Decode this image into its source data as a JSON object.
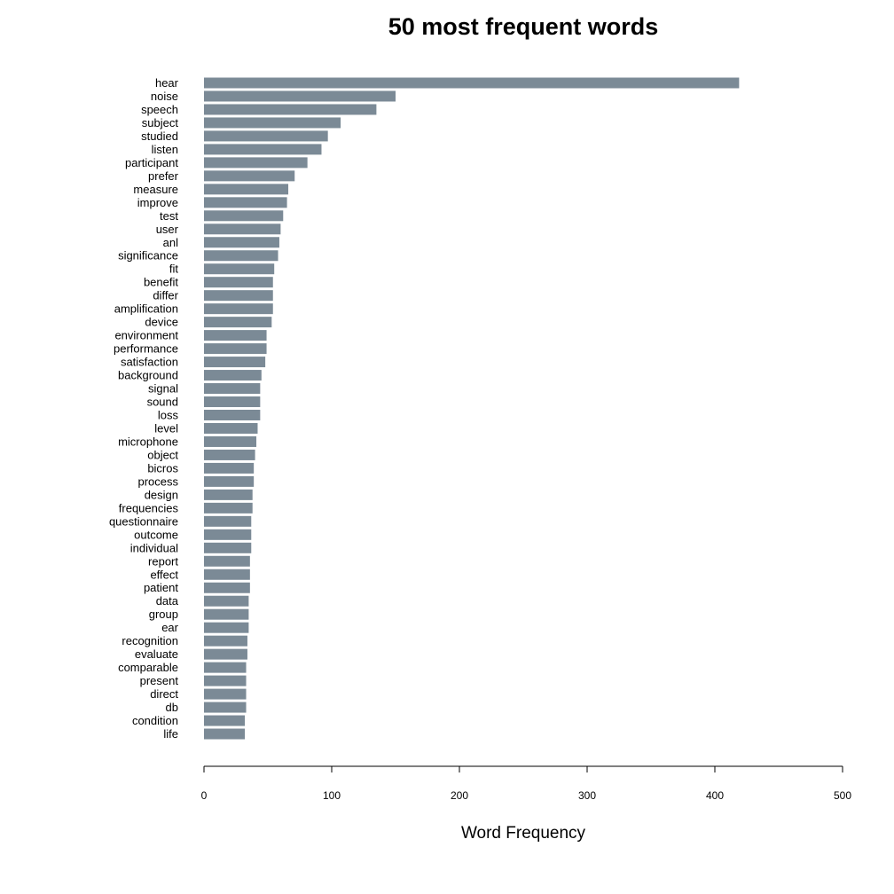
{
  "chart_data": {
    "type": "bar",
    "orientation": "horizontal",
    "title": "50 most frequent words",
    "xlabel": "Word Frequency",
    "ylabel": "",
    "xlim": [
      0,
      500
    ],
    "x_ticks": [
      "0",
      "100",
      "200",
      "300",
      "400",
      "500"
    ],
    "bar_color": "#7b8a96",
    "grid": false,
    "legend": "none",
    "categories": [
      "hear",
      "noise",
      "speech",
      "subject",
      "studied",
      "listen",
      "participant",
      "prefer",
      "measure",
      "improve",
      "test",
      "user",
      "anl",
      "significance",
      "fit",
      "benefit",
      "differ",
      "amplification",
      "device",
      "environment",
      "performance",
      "satisfaction",
      "background",
      "signal",
      "sound",
      "loss",
      "level",
      "microphone",
      "object",
      "bicros",
      "process",
      "design",
      "frequencies",
      "questionnaire",
      "outcome",
      "individual",
      "report",
      "effect",
      "patient",
      "data",
      "group",
      "ear",
      "recognition",
      "evaluate",
      "comparable",
      "present",
      "direct",
      "db",
      "condition",
      "life"
    ],
    "values": [
      419,
      150,
      135,
      107,
      97,
      92,
      81,
      71,
      66,
      65,
      62,
      60,
      59,
      58,
      55,
      54,
      54,
      54,
      53,
      49,
      49,
      48,
      45,
      44,
      44,
      44,
      42,
      41,
      40,
      39,
      39,
      38,
      38,
      37,
      37,
      37,
      36,
      36,
      36,
      35,
      35,
      35,
      34,
      34,
      33,
      33,
      33,
      33,
      32,
      32
    ]
  }
}
